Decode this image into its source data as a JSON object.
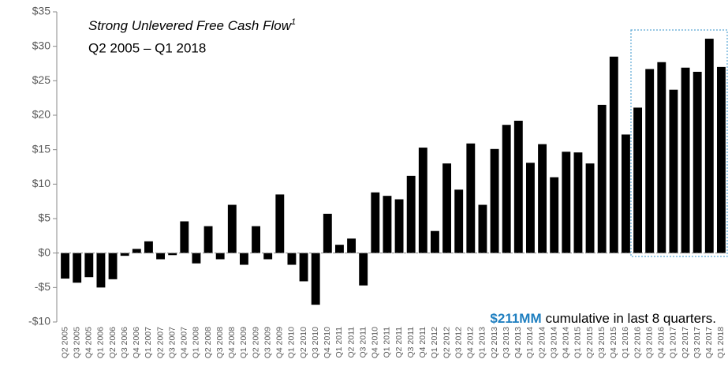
{
  "chart_data": {
    "type": "bar",
    "title": "Strong Unlevered Free Cash Flow",
    "title_note": "1",
    "subtitle": "Q2 2005 – Q1 2018",
    "annotation": {
      "highlight": "$211MM",
      "text": "cumulative in last 8 quarters."
    },
    "categories": [
      "Q2 2005",
      "Q3 2005",
      "Q4 2005",
      "Q1 2006",
      "Q2 2006",
      "Q3 2006",
      "Q4 2006",
      "Q1 2007",
      "Q2 2007",
      "Q3 2007",
      "Q4 2007",
      "Q1 2008",
      "Q2 2008",
      "Q3 2008",
      "Q4 2008",
      "Q1 2009",
      "Q2 2009",
      "Q3 2009",
      "Q4 2009",
      "Q1 2010",
      "Q2 2010",
      "Q3 2010",
      "Q4 2010",
      "Q1 2011",
      "Q2 2011",
      "Q3 2011",
      "Q4 2010",
      "Q1 2011",
      "Q2 2011",
      "Q3 2011",
      "Q4 2011",
      "Q1 2012",
      "Q2 2012",
      "Q3 2012",
      "Q4 2012",
      "Q1 2013",
      "Q2 2013",
      "Q3 2013",
      "Q4 2013",
      "Q1 2014",
      "Q2 2014",
      "Q3 2014",
      "Q4 2014",
      "Q1 2015",
      "Q2 2015",
      "Q3 2015",
      "Q4 2015",
      "Q1 2016",
      "Q2 2016",
      "Q3 2016",
      "Q4 2016",
      "Q1 2017",
      "Q2 2017",
      "Q3 2017",
      "Q4 2017",
      "Q1 2018"
    ],
    "values": [
      -3.7,
      -4.3,
      -3.5,
      -5.0,
      -3.8,
      -0.4,
      0.6,
      1.7,
      -0.9,
      -0.3,
      4.6,
      -1.5,
      3.9,
      -0.9,
      7.0,
      -1.7,
      3.9,
      -0.9,
      8.5,
      -1.7,
      -4.1,
      -7.5,
      5.7,
      1.2,
      2.1,
      -4.7,
      8.8,
      8.3,
      7.8,
      11.2,
      15.3,
      3.2,
      13.0,
      9.2,
      15.9,
      7.0,
      15.1,
      18.6,
      19.2,
      13.1,
      15.8,
      11.0,
      14.7,
      14.6,
      13.0,
      21.5,
      28.5,
      17.2,
      21.1,
      26.7,
      27.7,
      23.7,
      26.9,
      26.3,
      31.1,
      27.0
    ],
    "color": "#000000",
    "highlight_color": "#1f7fc0",
    "ylim": [
      -10,
      35
    ],
    "yticks": [
      {
        "value": -10,
        "label": "-$10"
      },
      {
        "value": -5,
        "label": "-$5"
      },
      {
        "value": 0,
        "label": "$0"
      },
      {
        "value": 5,
        "label": "$5"
      },
      {
        "value": 10,
        "label": "$10"
      },
      {
        "value": 15,
        "label": "$15"
      },
      {
        "value": 20,
        "label": "$20"
      },
      {
        "value": 25,
        "label": "$25"
      },
      {
        "value": 30,
        "label": "$30"
      },
      {
        "value": 35,
        "label": "$35"
      }
    ]
  }
}
